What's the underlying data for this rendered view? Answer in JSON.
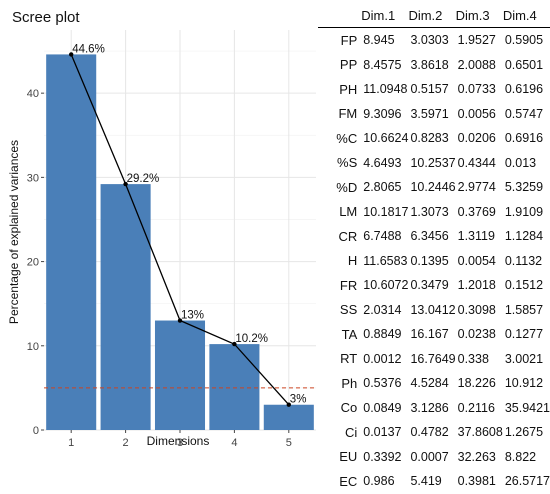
{
  "chart_data": {
    "type": "bar",
    "title": "Scree plot",
    "xlabel": "Dimensions",
    "ylabel": "Percentage of explained variances",
    "categories": [
      "1",
      "2",
      "3",
      "4",
      "5"
    ],
    "values": [
      44.6,
      29.2,
      13,
      10.2,
      3
    ],
    "value_labels": [
      "44.6%",
      "29.2%",
      "13%",
      "10.2%",
      "3%"
    ],
    "ylim": [
      0,
      47.5
    ],
    "yticks": [
      "0",
      "10",
      "20",
      "30",
      "40"
    ],
    "reference_line": 5,
    "grid": true,
    "bar_color": "#4a7fb8",
    "line_color": "#000000",
    "reference_line_color": "#cc4422"
  },
  "table": {
    "columns": [
      "Dim.1",
      "Dim.2",
      "Dim.3",
      "Dim.4"
    ],
    "rows": [
      {
        "name": "FP",
        "values": [
          "8.945",
          "3.0303",
          "1.9527",
          "0.5905"
        ]
      },
      {
        "name": "PP",
        "values": [
          "8.4575",
          "3.8618",
          "2.0088",
          "0.6501"
        ]
      },
      {
        "name": "PH",
        "values": [
          "11.0948",
          "0.5157",
          "0.0733",
          "0.6196"
        ]
      },
      {
        "name": "FM",
        "values": [
          "9.3096",
          "3.5971",
          "0.0056",
          "0.5747"
        ]
      },
      {
        "name": "%C",
        "values": [
          "10.6624",
          "0.8283",
          "0.0206",
          "0.6916"
        ]
      },
      {
        "name": "%S",
        "values": [
          "4.6493",
          "10.2537",
          "0.4344",
          "0.013"
        ]
      },
      {
        "name": "%D",
        "values": [
          "2.8065",
          "10.2446",
          "2.9774",
          "5.3259"
        ]
      },
      {
        "name": "LM",
        "values": [
          "10.1817",
          "1.3073",
          "0.3769",
          "1.9109"
        ]
      },
      {
        "name": "CR",
        "values": [
          "6.7488",
          "6.3456",
          "1.3119",
          "1.1284"
        ]
      },
      {
        "name": "H",
        "values": [
          "11.6583",
          "0.1395",
          "0.0054",
          "0.1132"
        ]
      },
      {
        "name": "FR",
        "values": [
          "10.6072",
          "0.3479",
          "1.2018",
          "0.1512"
        ]
      },
      {
        "name": "SS",
        "values": [
          "2.0314",
          "13.0412",
          "0.3098",
          "1.5857"
        ]
      },
      {
        "name": "TA",
        "values": [
          "0.8849",
          "16.167",
          "0.0238",
          "0.1277"
        ]
      },
      {
        "name": "RT",
        "values": [
          "0.0012",
          "16.7649",
          "0.338",
          "3.0021"
        ]
      },
      {
        "name": "Ph",
        "values": [
          "0.5376",
          "4.5284",
          "18.226",
          "10.912"
        ]
      },
      {
        "name": "Co",
        "values": [
          "0.0849",
          "3.1286",
          "0.2116",
          "35.9421"
        ]
      },
      {
        "name": "Ci",
        "values": [
          "0.0137",
          "0.4782",
          "37.8608",
          "1.2675"
        ]
      },
      {
        "name": "EU",
        "values": [
          "0.3392",
          "0.0007",
          "32.263",
          "8.822"
        ]
      },
      {
        "name": "EC",
        "values": [
          "0.986",
          "5.419",
          "0.3981",
          "26.5717"
        ]
      }
    ]
  }
}
